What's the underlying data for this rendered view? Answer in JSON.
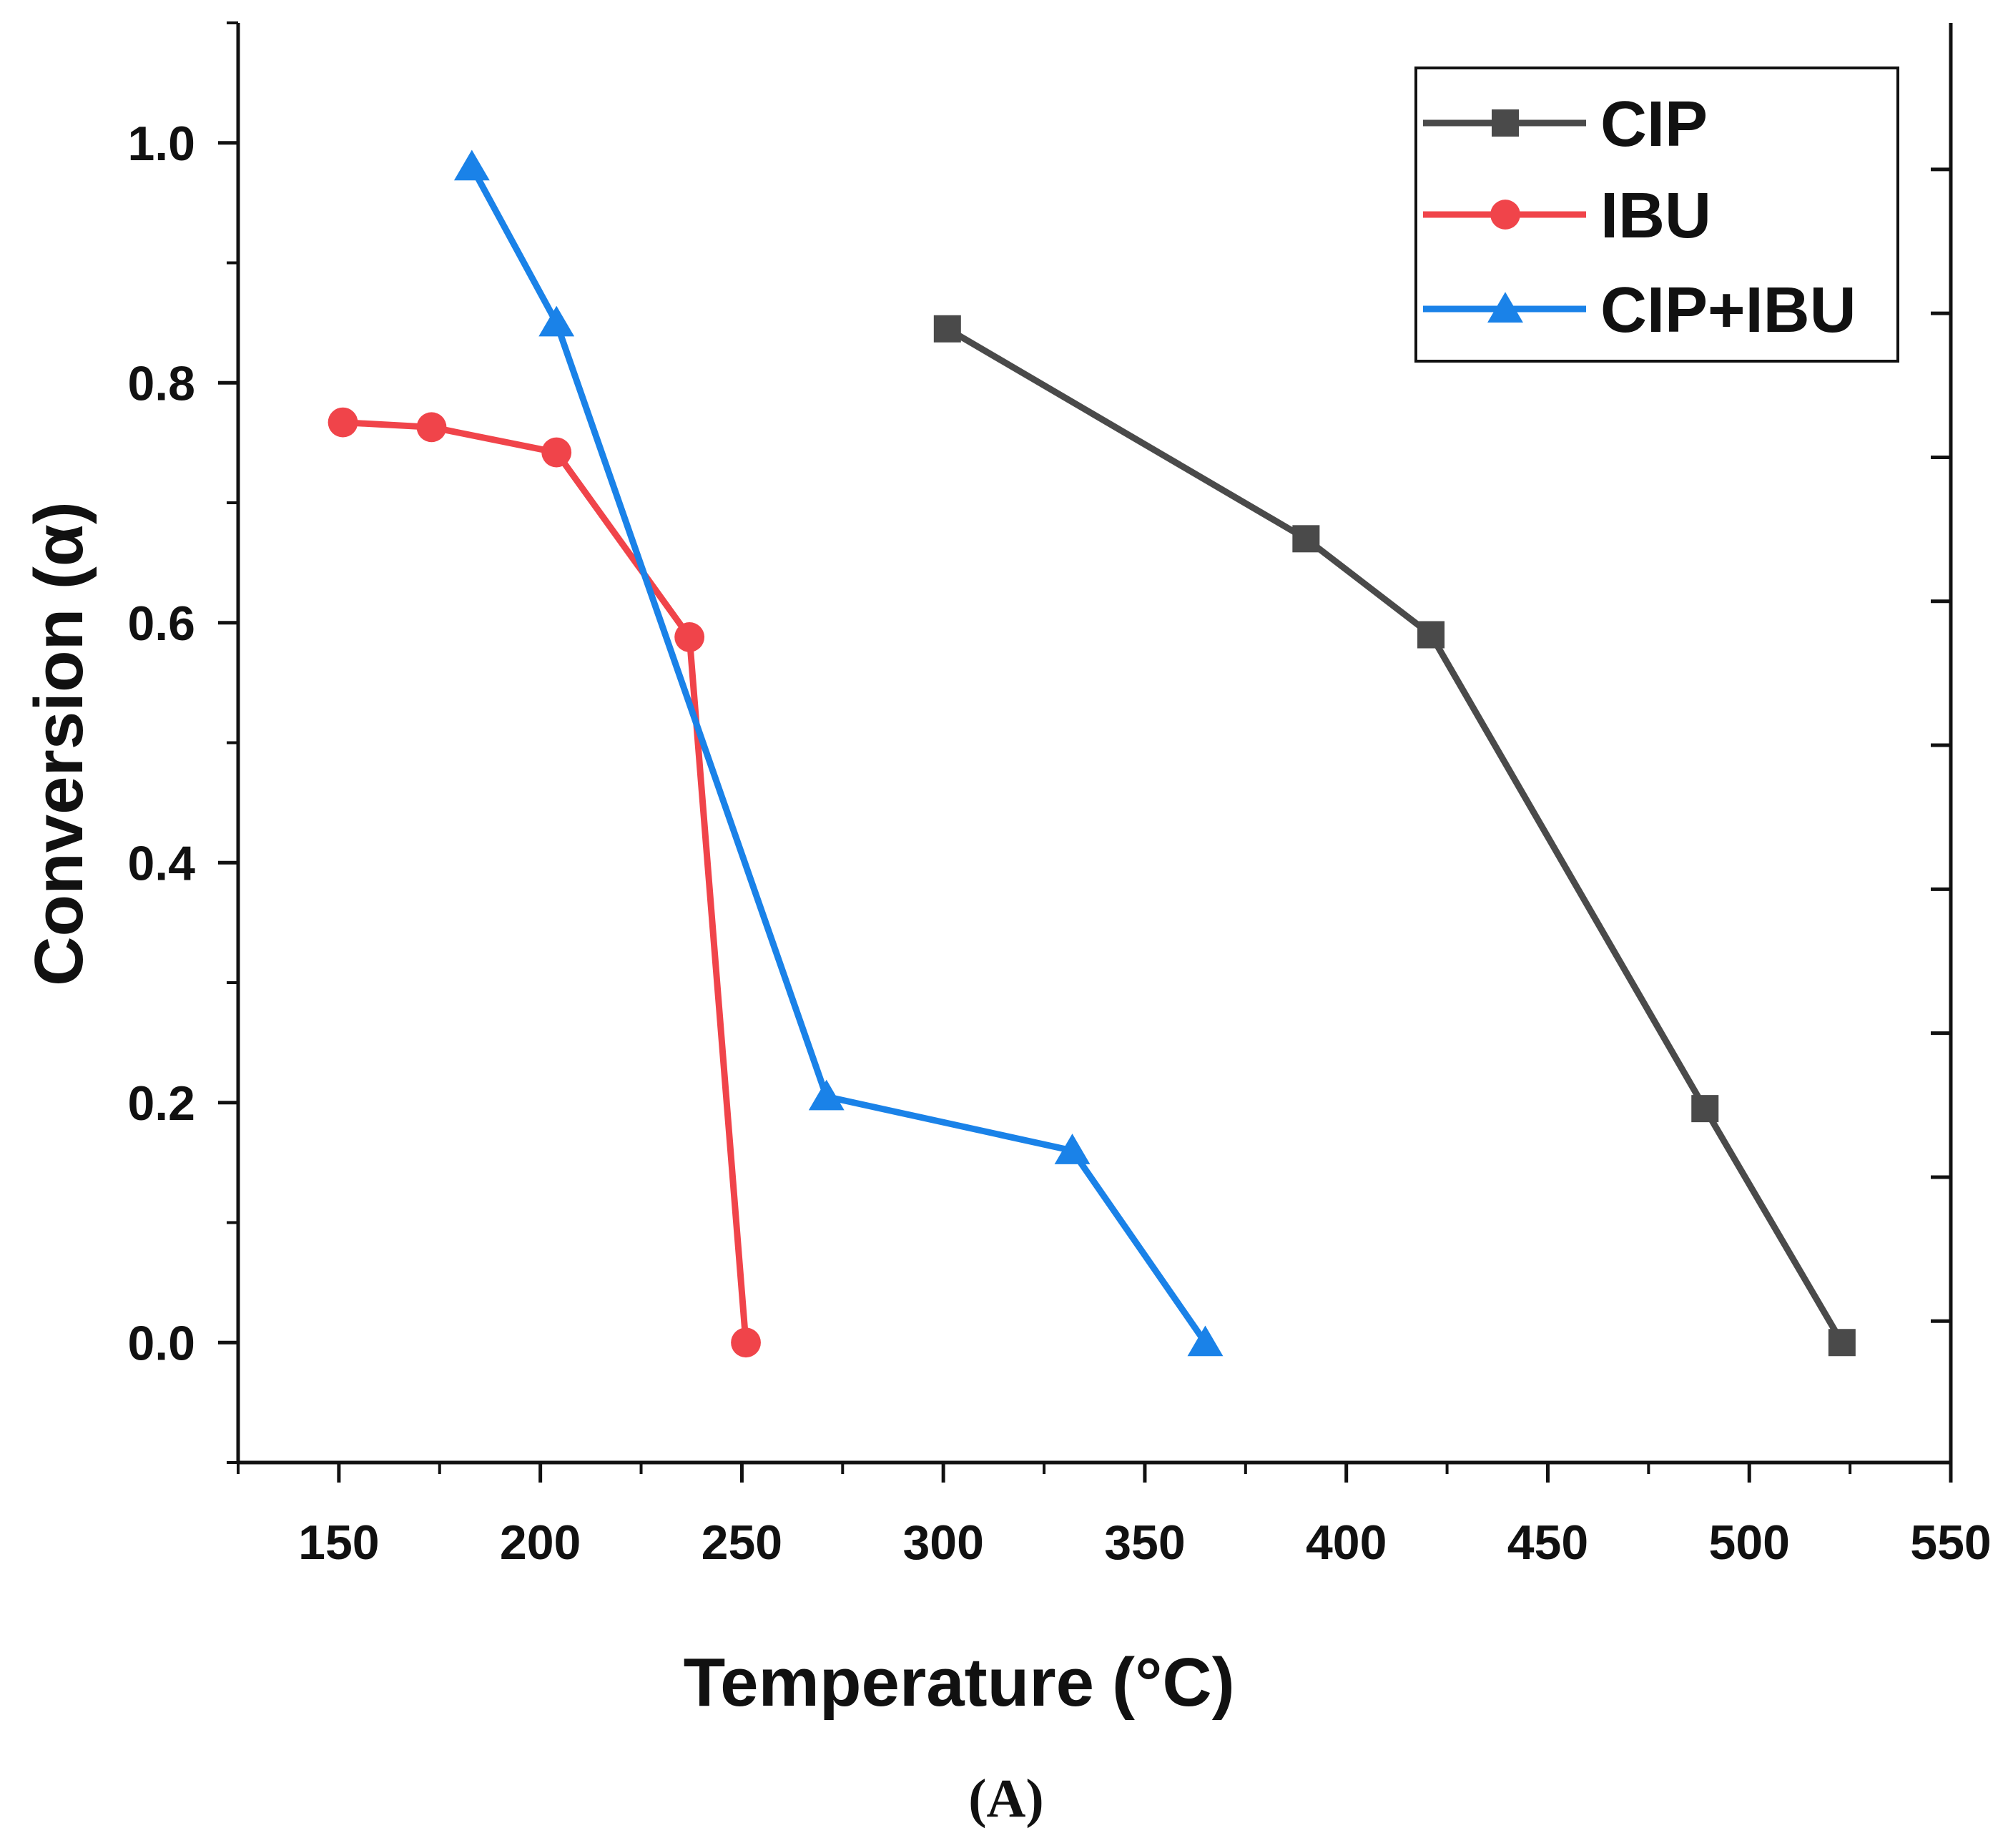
{
  "chart_data": {
    "type": "line",
    "title": "",
    "xlabel": "Temperature",
    "xlabel_unit": "(°C)",
    "ylabel": "Conversion (α)",
    "xlim": [
      125,
      550
    ],
    "ylim": [
      -0.1,
      1.1
    ],
    "xticks": [
      "150",
      "200",
      "250",
      "300",
      "350",
      "400",
      "450",
      "500",
      "550"
    ],
    "yticks": [
      "0.0",
      "0.2",
      "0.4",
      "0.6",
      "0.8",
      "1.0"
    ],
    "xtick_values": [
      150,
      200,
      250,
      300,
      350,
      400,
      450,
      500,
      550
    ],
    "ytick_values": [
      0.0,
      0.2,
      0.4,
      0.6,
      0.8,
      1.0
    ],
    "legend_position": "top-right",
    "series": [
      {
        "name": "CIP",
        "color": "#4a4a4a",
        "marker": "square",
        "x": [
          301,
          390,
          421,
          489,
          523
        ],
        "y": [
          0.845,
          0.67,
          0.59,
          0.195,
          0.0
        ]
      },
      {
        "name": "IBU",
        "color": "#f0444a",
        "marker": "circle",
        "x": [
          151,
          173,
          204,
          237,
          251
        ],
        "y": [
          0.767,
          0.763,
          0.742,
          0.588,
          0.0
        ]
      },
      {
        "name": "CIP+IBU",
        "color": "#1a82e8",
        "marker": "triangle",
        "x": [
          183,
          204,
          271,
          332,
          365
        ],
        "y": [
          0.98,
          0.85,
          0.205,
          0.16,
          0.0
        ]
      }
    ]
  },
  "panel_label": "(A)"
}
